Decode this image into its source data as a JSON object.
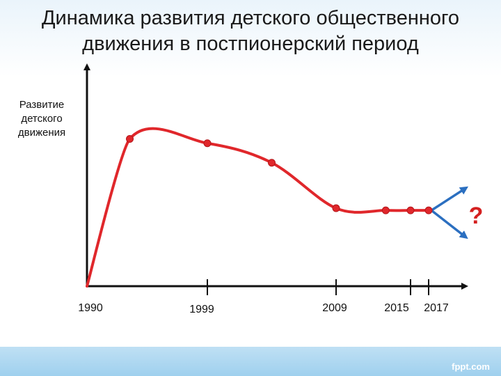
{
  "title_lines": [
    "Динамика развития детского общественного",
    "движения в постпионерский период"
  ],
  "watermark": "fppt.com",
  "colors": {
    "curve": "#e0272b",
    "branch": "#2b6fc0",
    "question": "#d42020",
    "axis": "#111111"
  },
  "chart_data": {
    "type": "line",
    "title": "Динамика развития детского общественного движения в постпионерский период",
    "ylabel": "Развитие детского движения",
    "xlabel": "",
    "x_ticks": [
      {
        "label": "1990",
        "year": 1990
      },
      {
        "label": "1999",
        "year": 1999
      },
      {
        "label": "2009",
        "year": 2009
      },
      {
        "label": "2015",
        "year": 2015
      },
      {
        "label": "2017",
        "year": 2017
      }
    ],
    "y_axis_values_shown": false,
    "series": [
      {
        "points": [
          {
            "x": 1990,
            "y": 0
          },
          {
            "x": 1993.2,
            "y": 68
          },
          {
            "x": 1999,
            "y": 66
          },
          {
            "x": 2004,
            "y": 57
          },
          {
            "x": 2009,
            "y": 36
          },
          {
            "x": 2013,
            "y": 35
          },
          {
            "x": 2015,
            "y": 35
          },
          {
            "x": 2017,
            "y": 35
          }
        ]
      }
    ],
    "forecast_branches": [
      {
        "direction": "up",
        "y": 45
      },
      {
        "direction": "down",
        "y": 23
      }
    ],
    "annotation": "?",
    "ylim": [
      0,
      100
    ],
    "grid": false,
    "legend": "none"
  }
}
